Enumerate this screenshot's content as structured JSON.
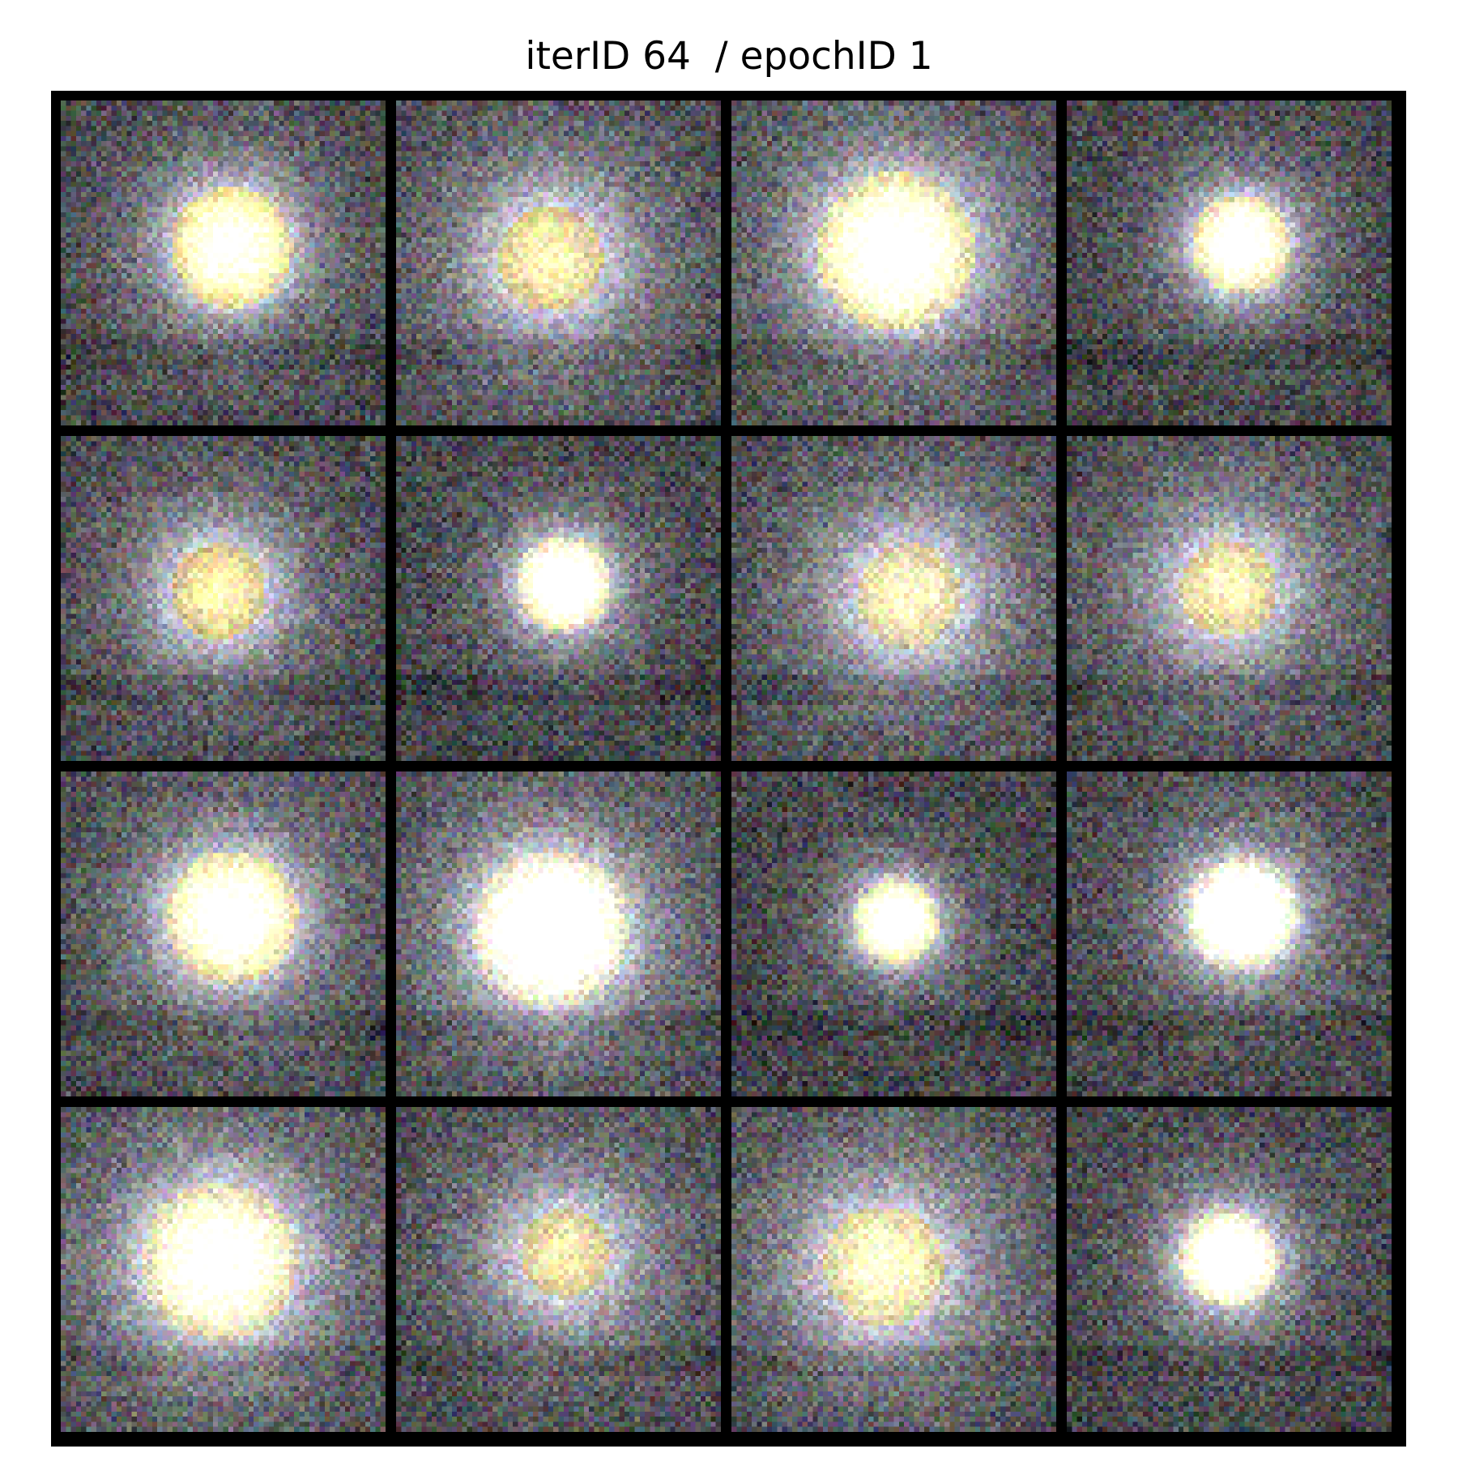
{
  "figure": {
    "title": "iterID 64  / epochID 1",
    "grid": {
      "rows": 4,
      "cols": 4,
      "border_color": "#000000"
    }
  },
  "samples": [
    {
      "row": 0,
      "col": 0,
      "glow": 0.95,
      "spread": 0.22,
      "tint": "#fff1b0"
    },
    {
      "row": 0,
      "col": 1,
      "glow": 0.55,
      "spread": 0.26,
      "tint": "#e9d8a0"
    },
    {
      "row": 0,
      "col": 2,
      "glow": 1.0,
      "spread": 0.28,
      "tint": "#fff6c0"
    },
    {
      "row": 0,
      "col": 3,
      "glow": 0.95,
      "spread": 0.18,
      "tint": "#fff4c4"
    },
    {
      "row": 1,
      "col": 0,
      "glow": 0.6,
      "spread": 0.22,
      "tint": "#e6d59a"
    },
    {
      "row": 1,
      "col": 1,
      "glow": 1.0,
      "spread": 0.17,
      "tint": "#fff8d0"
    },
    {
      "row": 1,
      "col": 2,
      "glow": 0.55,
      "spread": 0.26,
      "tint": "#e8dcb0"
    },
    {
      "row": 1,
      "col": 3,
      "glow": 0.55,
      "spread": 0.24,
      "tint": "#e9d9a6"
    },
    {
      "row": 2,
      "col": 0,
      "glow": 0.95,
      "spread": 0.24,
      "tint": "#fff4c0"
    },
    {
      "row": 2,
      "col": 1,
      "glow": 1.0,
      "spread": 0.28,
      "tint": "#fffbe0"
    },
    {
      "row": 2,
      "col": 2,
      "glow": 1.0,
      "spread": 0.15,
      "tint": "#fffac8"
    },
    {
      "row": 2,
      "col": 3,
      "glow": 1.0,
      "spread": 0.2,
      "tint": "#fffde8"
    },
    {
      "row": 3,
      "col": 0,
      "glow": 0.85,
      "spread": 0.3,
      "tint": "#f7f0c8"
    },
    {
      "row": 3,
      "col": 1,
      "glow": 0.5,
      "spread": 0.24,
      "tint": "#e4d7a2"
    },
    {
      "row": 3,
      "col": 2,
      "glow": 0.6,
      "spread": 0.28,
      "tint": "#ece2b0"
    },
    {
      "row": 3,
      "col": 3,
      "glow": 0.95,
      "spread": 0.18,
      "tint": "#fff8d6"
    }
  ]
}
